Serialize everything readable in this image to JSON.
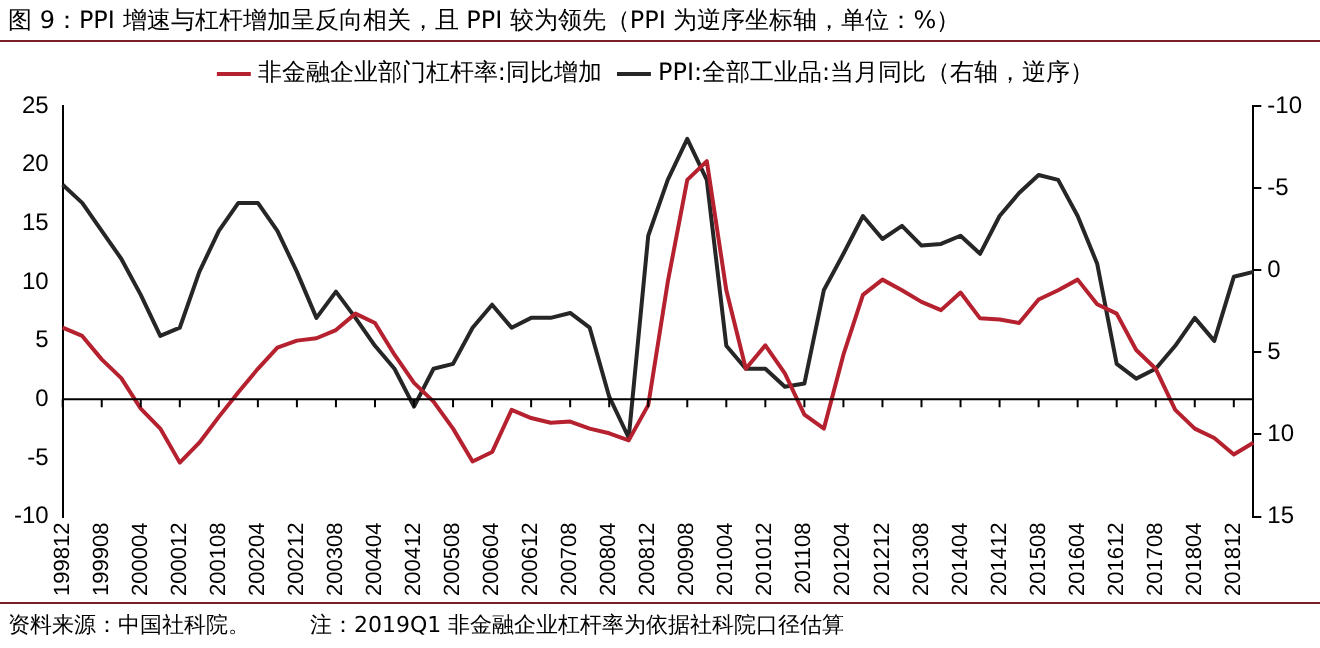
{
  "chart_data": {
    "type": "line",
    "title": "图 9：PPI 增速与杠杆增加呈反向相关，且 PPI 较为领先（PPI 为逆序坐标轴，单位：%）",
    "categories": [
      "199812",
      null,
      "199908",
      null,
      "200004",
      null,
      "200012",
      null,
      "200108",
      null,
      "200204",
      null,
      "200212",
      null,
      "200308",
      null,
      "200404",
      null,
      "200412",
      null,
      "200508",
      null,
      "200604",
      null,
      "200612",
      null,
      "200708",
      null,
      "200804",
      null,
      "200812",
      null,
      "200908",
      null,
      "201004",
      null,
      "201012",
      null,
      "201108",
      null,
      "201204",
      null,
      "201212",
      null,
      "201308",
      null,
      "201404",
      null,
      "201412",
      null,
      "201508",
      null,
      "201604",
      null,
      "201612",
      null,
      "201708",
      null,
      "201804",
      null,
      "201812",
      null
    ],
    "series": [
      {
        "name": "非金融企业部门杠杆率:同比增加",
        "color": "#b5212e",
        "values": [
          6.1,
          5.4,
          3.4,
          1.8,
          -0.8,
          -2.5,
          -5.4,
          -3.7,
          -1.5,
          0.6,
          2.6,
          4.4,
          5.0,
          5.2,
          5.9,
          7.3,
          6.5,
          3.8,
          1.4,
          -0.2,
          -2.5,
          -5.3,
          -4.5,
          -0.9,
          -1.6,
          -2.0,
          -1.9,
          -2.5,
          -2.9,
          -3.5,
          -0.5,
          10,
          18.7,
          20.3,
          9.3,
          2.6,
          4.6,
          2.2,
          -1.3,
          -2.5,
          3.8,
          8.9,
          10.2,
          9.3,
          8.3,
          7.6,
          9.1,
          6.9,
          6.8,
          6.5,
          8.5,
          9.3,
          10.2,
          8.1,
          7.3,
          4.2,
          2.6,
          -0.9,
          -2.5,
          -3.3,
          -4.7,
          -3.7
        ]
      },
      {
        "name": "PPI:全部工业品:当月同比（右轴，逆序）",
        "color": "#262626",
        "axis": "y2",
        "values": [
          -5.2,
          -4.1,
          -2.4,
          -0.7,
          1.5,
          4.0,
          3.5,
          0.1,
          -2.4,
          -4.1,
          -4.1,
          -2.4,
          0.1,
          2.9,
          1.3,
          2.9,
          4.6,
          6.0,
          8.3,
          6.0,
          5.7,
          3.5,
          2.1,
          3.5,
          2.9,
          2.9,
          2.6,
          3.5,
          7.7,
          10.2,
          -2.1,
          -5.5,
          -8.0,
          -5.5,
          4.6,
          6.0,
          6.0,
          7.1,
          6.9,
          1.2,
          -1.0,
          -3.3,
          -1.9,
          -2.7,
          -1.5,
          -1.6,
          -2.1,
          -1.0,
          -3.3,
          -4.7,
          -5.8,
          -5.5,
          -3.3,
          -0.4,
          5.7,
          6.6,
          6.0,
          4.6,
          2.9,
          4.3,
          0.4,
          0.1
        ]
      }
    ],
    "ylim": [
      -10,
      25
    ],
    "yticks": [
      -10,
      -5,
      0,
      5,
      10,
      15,
      20,
      25
    ],
    "y2lim": [
      15,
      -10
    ],
    "y2ticks": [
      -10,
      -5,
      0,
      5,
      10,
      15
    ],
    "legend": "top",
    "annotations": [
      "资料来源：中国社科院。",
      "注：2019Q1 非金融企业杠杆率为依据社科院口径估算"
    ]
  }
}
